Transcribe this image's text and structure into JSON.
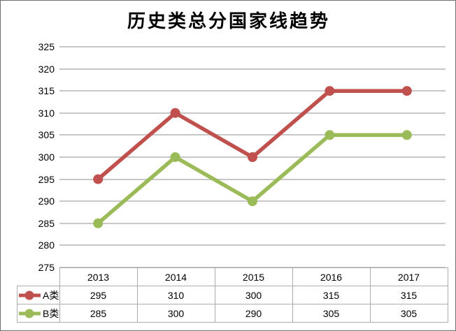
{
  "chart_data": {
    "type": "line",
    "title": "历史类总分国家线趋势",
    "categories": [
      "2013",
      "2014",
      "2015",
      "2016",
      "2017"
    ],
    "series": [
      {
        "name": "A类",
        "color": "#C0504D",
        "values": [
          295,
          310,
          300,
          315,
          315
        ]
      },
      {
        "name": "B类",
        "color": "#9BBB59",
        "values": [
          285,
          300,
          290,
          305,
          305
        ]
      }
    ],
    "y_axis": {
      "min": 275,
      "max": 325,
      "step": 5,
      "ticks": [
        325,
        320,
        315,
        310,
        305,
        300,
        295,
        290,
        285,
        280,
        275
      ]
    },
    "xlabel": "",
    "ylabel": "",
    "grid": "horizontal-only",
    "gridline_color": "#c8c8c8",
    "legend_position": "data-table-left-keys",
    "data_table_shown": true,
    "background_color": "#ffffff"
  }
}
